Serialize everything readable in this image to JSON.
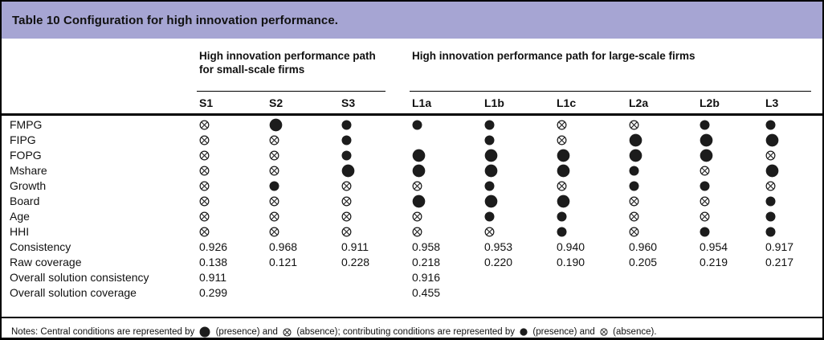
{
  "title": "Table 10 Configuration for high innovation performance.",
  "column_groups": [
    {
      "label": "High innovation performance path for small-scale firms",
      "columns": [
        "S1",
        "S2",
        "S3"
      ]
    },
    {
      "label": "High innovation performance path for large-scale firms",
      "columns": [
        "L1a",
        "L1b",
        "L1c",
        "L2a",
        "L2b",
        "L3"
      ]
    }
  ],
  "columns": [
    "S1",
    "S2",
    "S3",
    "L1a",
    "L1b",
    "L1c",
    "L2a",
    "L2b",
    "L3"
  ],
  "symbol_key": {
    "CP": "central-condition-presence-large-filled-circle",
    "CA": "central-condition-absence-large-crossed-circle",
    "P": "contributing-condition-presence-small-filled-circle",
    "A": "contributing-condition-absence-small-crossed-circle",
    "": "blank"
  },
  "condition_rows": [
    {
      "label": "FMPG",
      "cells": [
        "A",
        "CP",
        "P",
        "P",
        "P",
        "A",
        "A",
        "P",
        "P"
      ]
    },
    {
      "label": "FIPG",
      "cells": [
        "A",
        "A",
        "P",
        "",
        "P",
        "A",
        "CP",
        "CP",
        "CP"
      ]
    },
    {
      "label": "FOPG",
      "cells": [
        "A",
        "A",
        "P",
        "CP",
        "CP",
        "CP",
        "CP",
        "CP",
        "A"
      ]
    },
    {
      "label": "Mshare",
      "cells": [
        "A",
        "A",
        "CP",
        "CP",
        "CP",
        "CP",
        "P",
        "A",
        "CP"
      ]
    },
    {
      "label": "Growth",
      "cells": [
        "A",
        "P",
        "A",
        "A",
        "P",
        "A",
        "P",
        "P",
        "A"
      ]
    },
    {
      "label": "Board",
      "cells": [
        "A",
        "A",
        "A",
        "CP",
        "CP",
        "CP",
        "A",
        "A",
        "P"
      ]
    },
    {
      "label": "Age",
      "cells": [
        "A",
        "A",
        "A",
        "A",
        "P",
        "P",
        "A",
        "A",
        "P"
      ]
    },
    {
      "label": "HHI",
      "cells": [
        "A",
        "A",
        "A",
        "A",
        "A",
        "P",
        "A",
        "P",
        "P"
      ]
    }
  ],
  "stat_rows": [
    {
      "label": "Consistency",
      "cells": [
        "0.926",
        "0.968",
        "0.911",
        "0.958",
        "0.953",
        "0.940",
        "0.960",
        "0.954",
        "0.917"
      ]
    },
    {
      "label": "Raw coverage",
      "cells": [
        "0.138",
        "0.121",
        "0.228",
        "0.218",
        "0.220",
        "0.190",
        "0.205",
        "0.219",
        "0.217"
      ]
    },
    {
      "label": "Overall solution consistency",
      "cells": [
        "0.911",
        "",
        "",
        "0.916",
        "",
        "",
        "",
        "",
        ""
      ]
    },
    {
      "label": "Overall solution coverage",
      "cells": [
        "0.299",
        "",
        "",
        "0.455",
        "",
        "",
        "",
        "",
        ""
      ]
    }
  ],
  "notes": {
    "segments": [
      {
        "text": "Notes: Central conditions are represented by "
      },
      {
        "symbol": "CP"
      },
      {
        "text": " (presence) and "
      },
      {
        "symbol": "CA"
      },
      {
        "text": " (absence); contributing conditions are represented by "
      },
      {
        "symbol": "P"
      },
      {
        "text": " (presence) and "
      },
      {
        "symbol": "A"
      },
      {
        "text": " (absence)."
      }
    ]
  },
  "colors": {
    "title_bar": "#a6a5d3",
    "border": "#000000",
    "text": "#111111",
    "symbol": "#1c1c1c"
  }
}
